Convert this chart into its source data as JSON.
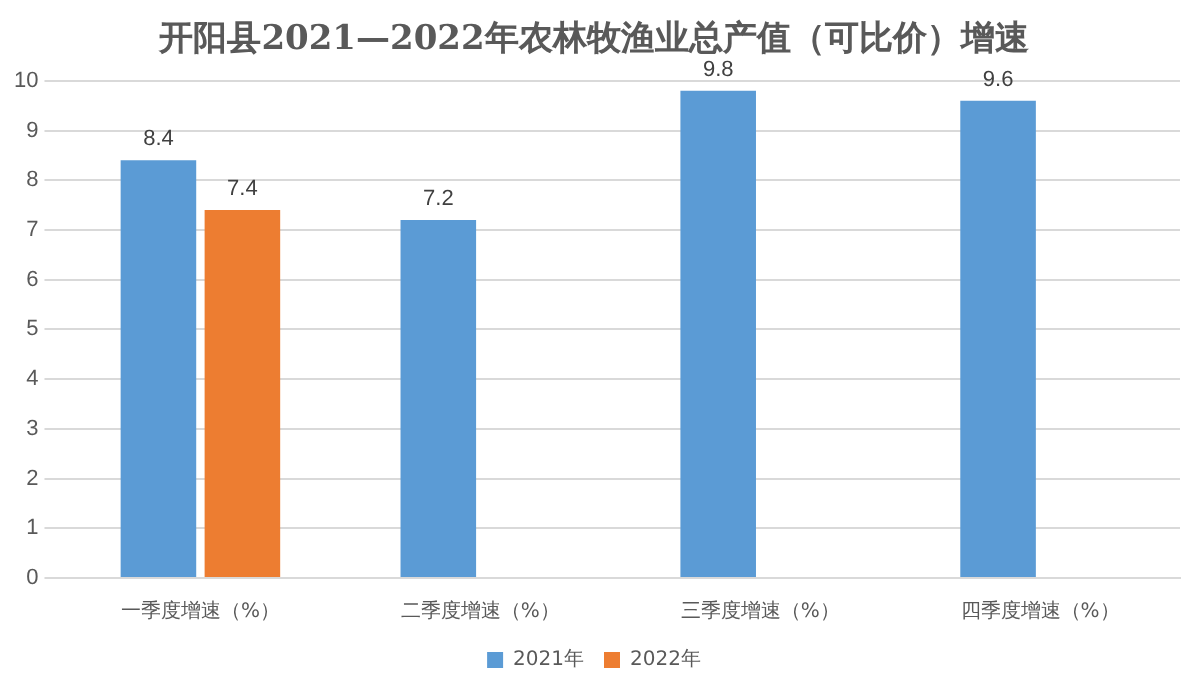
{
  "chart_data": {
    "type": "bar",
    "title": "开阳县2021—2022年农林牧渔业总产值（可比价）增速",
    "categories": [
      "一季度增速（%）",
      "二季度增速（%）",
      "三季度增速（%）",
      "四季度增速（%）"
    ],
    "series": [
      {
        "name": "2021年",
        "color": "#5b9bd5",
        "values": [
          8.4,
          7.2,
          9.8,
          9.6
        ]
      },
      {
        "name": "2022年",
        "color": "#ed7d31",
        "values": [
          7.4,
          null,
          null,
          null
        ]
      }
    ],
    "ylim": [
      0,
      10
    ],
    "yticks": [
      0,
      1,
      2,
      3,
      4,
      5,
      6,
      7,
      8,
      9,
      10
    ],
    "grid": "y",
    "legend": "bottom",
    "data_labels": true
  }
}
